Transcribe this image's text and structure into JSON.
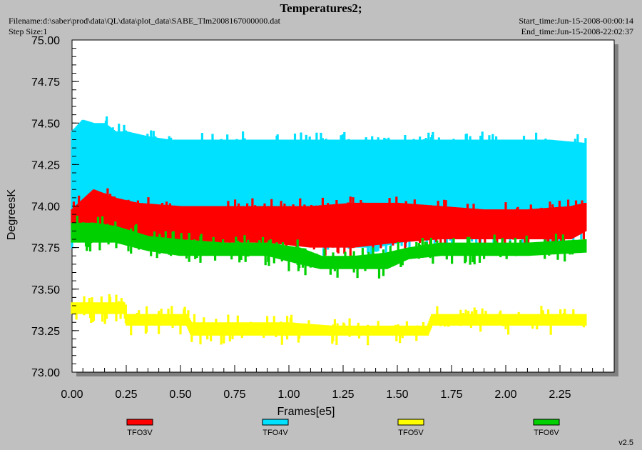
{
  "header": {
    "title": "Temperatures2;",
    "filename_label": "Filename:d:\\saber\\prod\\data\\QL\\data\\plot_data\\SABE_Tlm2008167000000.dat",
    "step_label": "Step Size:1",
    "start_label": "Start_time:Jun-15-2008-00:00:14",
    "end_label": "End_time:Jun-15-2008-22:02:37",
    "version": "v2.5"
  },
  "colors": {
    "background": "#c0c0c0",
    "plot_bg": "#ffffff",
    "TFO3V": "#ff0000",
    "TFO4V": "#00e0ff",
    "TFO5V": "#ffff00",
    "TFO6V": "#00d000"
  },
  "chart_data": {
    "type": "line",
    "title": "Temperatures2;",
    "xlabel": "Frames[e5]",
    "ylabel": "DegreesK",
    "xlim": [
      0,
      2.5
    ],
    "ylim": [
      73.0,
      75.0
    ],
    "x_ticks": [
      "0.00",
      "0.25",
      "0.50",
      "0.75",
      "1.00",
      "1.25",
      "1.50",
      "1.75",
      "2.00",
      "2.25"
    ],
    "y_ticks": [
      "73.00",
      "73.25",
      "73.50",
      "73.75",
      "74.00",
      "74.25",
      "74.50",
      "74.75",
      "75.00"
    ],
    "grid": false,
    "legend_position": "bottom",
    "series": [
      {
        "name": "TFO4V",
        "color": "#00e0ff",
        "x": [
          0.0,
          0.05,
          0.1,
          0.15,
          0.2,
          0.25,
          0.35,
          0.45,
          0.6,
          0.8,
          1.0,
          1.2,
          1.4,
          1.6,
          1.8,
          2.0,
          2.2,
          2.37
        ],
        "low": [
          73.8,
          73.85,
          73.85,
          73.85,
          73.85,
          73.85,
          73.85,
          73.8,
          73.8,
          73.8,
          73.8,
          73.75,
          73.75,
          73.8,
          73.8,
          73.8,
          73.8,
          73.85
        ],
        "high": [
          74.45,
          74.52,
          74.5,
          74.5,
          74.45,
          74.45,
          74.42,
          74.4,
          74.4,
          74.4,
          74.4,
          74.4,
          74.4,
          74.4,
          74.4,
          74.4,
          74.4,
          74.38
        ]
      },
      {
        "name": "TFO3V",
        "color": "#ff0000",
        "x": [
          0.0,
          0.1,
          0.2,
          0.3,
          0.5,
          0.7,
          0.9,
          1.1,
          1.3,
          1.5,
          1.7,
          1.9,
          2.1,
          2.3,
          2.37
        ],
        "low": [
          73.88,
          73.88,
          73.85,
          73.8,
          73.8,
          73.78,
          73.78,
          73.75,
          73.75,
          73.78,
          73.8,
          73.8,
          73.8,
          73.8,
          73.85
        ],
        "high": [
          73.98,
          74.1,
          74.05,
          74.02,
          74.0,
          74.0,
          74.0,
          74.0,
          74.02,
          74.02,
          74.0,
          73.98,
          73.98,
          74.0,
          74.02
        ]
      },
      {
        "name": "TFO6V",
        "color": "#00d000",
        "x": [
          0.0,
          0.1,
          0.2,
          0.35,
          0.5,
          0.7,
          0.9,
          1.05,
          1.15,
          1.3,
          1.45,
          1.55,
          1.7,
          1.9,
          2.1,
          2.37
        ],
        "low": [
          73.78,
          73.78,
          73.78,
          73.73,
          73.7,
          73.7,
          73.7,
          73.65,
          73.62,
          73.62,
          73.62,
          73.68,
          73.7,
          73.7,
          73.7,
          73.72
        ],
        "high": [
          73.9,
          73.9,
          73.88,
          73.82,
          73.8,
          73.78,
          73.78,
          73.75,
          73.7,
          73.7,
          73.72,
          73.75,
          73.78,
          73.78,
          73.78,
          73.8
        ]
      },
      {
        "name": "TFO5V",
        "color": "#ffff00",
        "x": [
          0.0,
          0.1,
          0.24,
          0.25,
          0.4,
          0.53,
          0.55,
          0.8,
          1.0,
          1.2,
          1.3,
          1.5,
          1.64,
          1.66,
          1.8,
          2.0,
          2.2,
          2.37
        ],
        "low": [
          73.35,
          73.35,
          73.35,
          73.28,
          73.28,
          73.28,
          73.22,
          73.22,
          73.22,
          73.22,
          73.22,
          73.22,
          73.22,
          73.28,
          73.28,
          73.28,
          73.28,
          73.28
        ],
        "high": [
          73.42,
          73.42,
          73.42,
          73.35,
          73.35,
          73.35,
          73.3,
          73.3,
          73.3,
          73.28,
          73.28,
          73.28,
          73.28,
          73.35,
          73.35,
          73.35,
          73.35,
          73.35
        ]
      }
    ]
  }
}
